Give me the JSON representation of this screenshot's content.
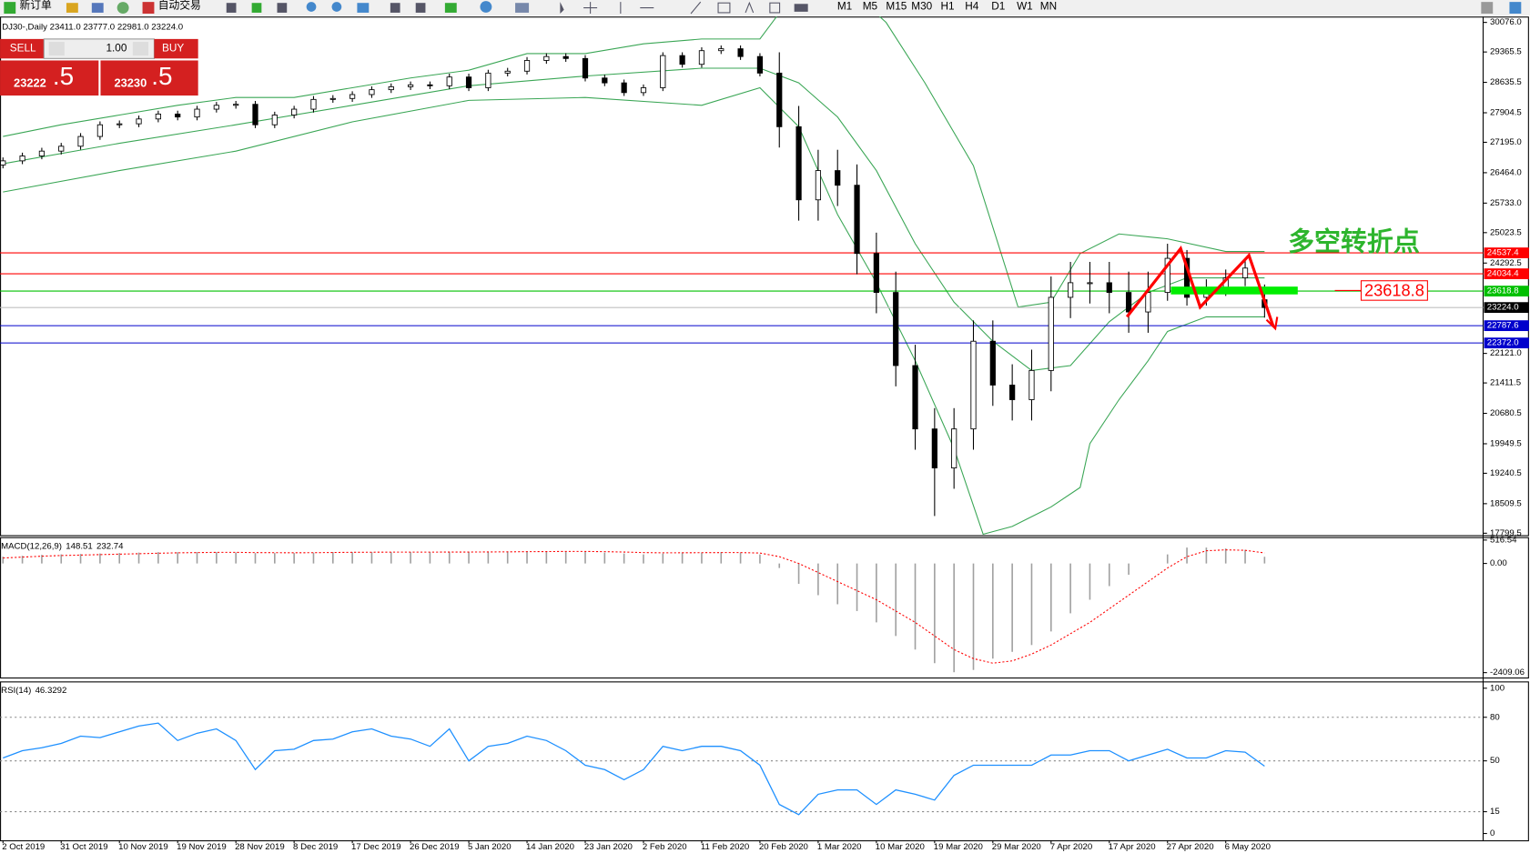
{
  "toolbar": {
    "new_order": "新订单",
    "auto_trading": "自动交易",
    "timeframes": [
      "M1",
      "M5",
      "M15",
      "M30",
      "H1",
      "H4",
      "D1",
      "W1",
      "MN"
    ]
  },
  "trade_panel": {
    "sell": "SELL",
    "lot": "1.00",
    "buy": "BUY",
    "bid_main": "23222",
    "bid_pip": ".5",
    "ask_main": "23230",
    "ask_pip": ".5"
  },
  "chart_data": [
    {
      "type": "candlestick",
      "header": "DJ30-,Daily  23411.0 23777.0 22981.0 23224.0",
      "annotation": "多空转折点",
      "categories": [
        "2 Oct 2019",
        null,
        null,
        "31 Oct 2019",
        null,
        null,
        "10 Nov 2019",
        null,
        null,
        "19 Nov 2019",
        null,
        null,
        "28 Nov 2019",
        null,
        null,
        "8 Dec 2019",
        null,
        null,
        "17 Dec 2019",
        null,
        null,
        "26 Dec 2019",
        null,
        null,
        "5 Jan 2020",
        null,
        null,
        "14 Jan 2020",
        null,
        null,
        "23 Jan 2020",
        null,
        null,
        "2 Feb 2020",
        null,
        null,
        "11 Feb 2020",
        null,
        null,
        "20 Feb 2020",
        null,
        null,
        "1 Mar 2020",
        null,
        null,
        "10 Mar 2020",
        null,
        null,
        "19 Mar 2020",
        null,
        null,
        "29 Mar 2020",
        null,
        null,
        "7 Apr 2020",
        null,
        null,
        "17 Apr 2020",
        null,
        null,
        "27 Apr 2020",
        null,
        null,
        "6 May 2020",
        null,
        null
      ],
      "ohlc": [
        [
          26650,
          26830,
          26570,
          26749
        ],
        [
          26749,
          26946,
          26669,
          26866
        ],
        [
          26866,
          27063,
          26786,
          26983
        ],
        [
          26983,
          27180,
          26903,
          27100
        ],
        [
          27100,
          27415,
          27020,
          27335
        ],
        [
          27335,
          27696,
          27255,
          27616
        ],
        [
          27616,
          27719,
          27536,
          27639
        ],
        [
          27639,
          27836,
          27559,
          27756
        ],
        [
          27756,
          27954,
          27676,
          27874
        ],
        [
          27874,
          27954,
          27723,
          27803
        ],
        [
          27803,
          28071,
          27723,
          27991
        ],
        [
          27991,
          28164,
          27911,
          28084
        ],
        [
          28084,
          28188,
          28004,
          28108
        ],
        [
          28108,
          28188,
          27536,
          27616
        ],
        [
          27616,
          27930,
          27536,
          27850
        ],
        [
          27850,
          28071,
          27770,
          27991
        ],
        [
          27991,
          28305,
          27911,
          28225
        ],
        [
          28225,
          28328,
          28145,
          28248
        ],
        [
          28248,
          28422,
          28168,
          28342
        ],
        [
          28342,
          28539,
          28262,
          28459
        ],
        [
          28459,
          28610,
          28379,
          28530
        ],
        [
          28530,
          28656,
          28450,
          28576
        ],
        [
          28576,
          28656,
          28473,
          28553
        ],
        [
          28553,
          28844,
          28473,
          28764
        ],
        [
          28764,
          28844,
          28426,
          28506
        ],
        [
          28506,
          28938,
          28426,
          28858
        ],
        [
          28858,
          28984,
          28778,
          28904
        ],
        [
          28904,
          29242,
          28824,
          29162
        ],
        [
          29162,
          29336,
          29082,
          29256
        ],
        [
          29256,
          29336,
          29129,
          29209
        ],
        [
          29209,
          29289,
          28660,
          28740
        ],
        [
          28740,
          28820,
          28543,
          28623
        ],
        [
          28623,
          28703,
          28309,
          28389
        ],
        [
          28389,
          28586,
          28309,
          28506
        ],
        [
          28506,
          29359,
          28426,
          29279
        ],
        [
          29279,
          29359,
          28989,
          29069
        ],
        [
          29069,
          29477,
          28989,
          29397
        ],
        [
          29397,
          29523,
          29317,
          29443
        ],
        [
          29443,
          29523,
          29176,
          29256
        ],
        [
          29256,
          29336,
          28778,
          28858
        ],
        [
          28858,
          29358,
          27069,
          27569
        ],
        [
          27569,
          28069,
          25312,
          25812
        ],
        [
          25812,
          27015,
          25312,
          26515
        ],
        [
          26515,
          27015,
          25663,
          26163
        ],
        [
          26163,
          26663,
          24023,
          24523
        ],
        [
          24523,
          25023,
          23086,
          23586
        ],
        [
          23586,
          24086,
          21329,
          21829
        ],
        [
          21829,
          22329,
          19806,
          20306
        ],
        [
          20306,
          20806,
          18213,
          19368
        ],
        [
          19368,
          20806,
          18868,
          20306
        ],
        [
          20306,
          22914,
          19806,
          22414
        ],
        [
          22414,
          22914,
          20860,
          21360
        ],
        [
          21360,
          21860,
          20509,
          21009
        ],
        [
          21009,
          22211,
          20509,
          21711
        ],
        [
          21711,
          23969,
          21211,
          23469
        ],
        [
          23469,
          24320,
          22969,
          23820
        ],
        [
          23820,
          24320,
          23320,
          23820
        ],
        [
          23820,
          24320,
          23086,
          23586
        ],
        [
          23586,
          24086,
          22617,
          23117
        ],
        [
          23117,
          24086,
          22617,
          23586
        ],
        [
          23586,
          24757,
          23386,
          24406
        ],
        [
          24406,
          24606,
          23269,
          23469
        ],
        [
          23469,
          23903,
          23269,
          23703
        ],
        [
          23703,
          24137,
          23503,
          23937
        ],
        [
          23937,
          24372,
          23737,
          24172
        ],
        [
          23411,
          23777,
          22981,
          23224
        ]
      ],
      "bands": [
        {
          "color": "#3aa655",
          "x": [
            0,
            3,
            6,
            9,
            12,
            15,
            18,
            21,
            24,
            27,
            30,
            33,
            36,
            39,
            42,
            45.5,
            47.5,
            50,
            52.3,
            54,
            55.5,
            57.5,
            60,
            63,
            65
          ],
          "values": [
            27335,
            27616,
            27850,
            28084,
            28272,
            28272,
            28506,
            28740,
            28928,
            29326,
            29326,
            29561,
            29678,
            29678,
            31552,
            30076,
            28623,
            26632,
            23235,
            23352,
            24523,
            24992,
            24875,
            24570,
            24570
          ]
        },
        {
          "color": "#3aa655",
          "x": [
            0,
            6,
            12,
            18,
            24,
            30,
            36,
            39,
            41,
            43,
            45,
            47,
            49,
            51,
            53,
            55,
            57,
            59,
            61,
            65
          ],
          "values": [
            26679,
            27171,
            27616,
            28084,
            28553,
            28787,
            28975,
            28975,
            28623,
            27803,
            26515,
            24757,
            23352,
            22414,
            21711,
            21829,
            22883,
            23586,
            23937,
            23937
          ]
        },
        {
          "color": "#3aa655",
          "x": [
            0,
            6,
            12,
            18,
            24,
            30,
            36,
            39,
            41,
            43,
            45,
            47,
            49,
            50.5,
            52,
            54,
            55.5,
            56,
            57.5,
            59,
            60,
            62,
            65
          ],
          "values": [
            26000,
            26515,
            26983,
            27686,
            28202,
            28272,
            28084,
            28506,
            27569,
            25460,
            23820,
            21946,
            19837,
            17775,
            17963,
            18431,
            18900,
            19954,
            21009,
            21946,
            22649,
            23000,
            23000
          ]
        }
      ],
      "levels": [
        {
          "value": 24537.4,
          "color": "#ff0000"
        },
        {
          "value": 24034.4,
          "color": "#ff0000"
        },
        {
          "value": 23618.8,
          "color": "#00c000"
        },
        {
          "value": 23224,
          "label": "23224.0",
          "color": "#000000",
          "line_color": "#c0c0c0"
        },
        {
          "value": 22787.6,
          "color": "#0000cc"
        },
        {
          "value": 22372,
          "label": "22372.0",
          "color": "#0000cc"
        }
      ],
      "ylim": [
        17752,
        30193
      ],
      "yticks": [
        {
          "value": 30076,
          "label": "30076.0"
        },
        29365.5,
        28635.5,
        27904.5,
        {
          "value": 27195,
          "label": "27195.0"
        },
        {
          "value": 26464,
          "label": "26464.0"
        },
        {
          "value": 25733,
          "label": "25733.0"
        },
        25023.5,
        24292.5,
        {
          "value": 22121,
          "label": "22121.0"
        },
        21411.5,
        20680.5,
        19949.5,
        19240.5,
        18509.5,
        17799.5
      ]
    },
    {
      "type": "macd",
      "title": "MACD(12,26,9)",
      "ylim": [
        -2517,
        559
      ],
      "yticks": [
        516.54,
        {
          "value": 0,
          "label": "0.00"
        },
        -2409.06
      ],
      "series": [
        {
          "color": "#a0a0a0",
          "values": [
            150,
            170,
            190,
            200,
            210,
            220,
            230,
            240,
            250,
            250,
            250,
            250,
            240,
            230,
            230,
            230,
            240,
            250,
            250,
            250,
            250,
            250,
            250,
            260,
            250,
            260,
            260,
            270,
            270,
            270,
            260,
            240,
            220,
            200,
            220,
            240,
            240,
            250,
            240,
            200,
            -100,
            -450,
            -700,
            -900,
            -1050,
            -1300,
            -1600,
            -1900,
            -2200,
            -2400,
            -2350,
            -2100,
            -1950,
            -1800,
            -1500,
            -1100,
            -800,
            -500,
            -250,
            0,
            200,
            350,
            350,
            330,
            300,
            148.51
          ]
        },
        {
          "color": "#ff0000",
          "values": [
            120,
            140,
            160,
            175,
            185,
            195,
            205,
            215,
            225,
            235,
            240,
            245,
            245,
            240,
            238,
            236,
            238,
            242,
            246,
            248,
            250,
            250,
            250,
            252,
            252,
            254,
            256,
            260,
            262,
            265,
            265,
            260,
            252,
            240,
            235,
            236,
            238,
            240,
            240,
            230,
            150,
            0,
            -200,
            -400,
            -600,
            -800,
            -1050,
            -1300,
            -1600,
            -1900,
            -2100,
            -2200,
            -2150,
            -2000,
            -1800,
            -1550,
            -1300,
            -1000,
            -700,
            -400,
            -100,
            150,
            280,
            300,
            290,
            232.74
          ]
        }
      ]
    },
    {
      "type": "line",
      "title": "RSI(14)",
      "ylim": [
        -4.7,
        104
      ],
      "yticks": [
        100,
        80,
        50,
        15,
        0
      ],
      "levels": [
        80,
        50,
        15
      ],
      "series": [
        {
          "color": "#1e90ff",
          "values": [
            52,
            57,
            59,
            62,
            67,
            66,
            70,
            74,
            76,
            64,
            69,
            72,
            64,
            44,
            57,
            58,
            64,
            65,
            70,
            72,
            67,
            65,
            60,
            72,
            50,
            60,
            62,
            67,
            64,
            57,
            47,
            44,
            37,
            44,
            60,
            57,
            60,
            60,
            57,
            47,
            20,
            13,
            27,
            30,
            30,
            20,
            30,
            27,
            23,
            40,
            47,
            47,
            47,
            47,
            54,
            54,
            57,
            57,
            50,
            54,
            58,
            52,
            52,
            57,
            56,
            46.3292
          ]
        }
      ]
    }
  ]
}
